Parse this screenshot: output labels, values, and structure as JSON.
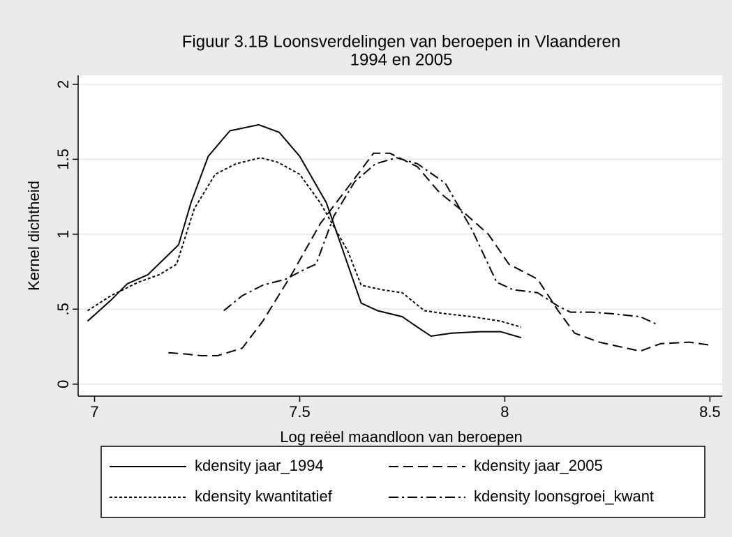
{
  "chart_data": {
    "type": "line",
    "title": [
      "Figuur 3.1B Loonsverdelingen van beroepen in Vlaanderen",
      "1994 en 2005"
    ],
    "xlabel": "Log reëel maandloon van beroepen",
    "ylabel": "Kernel dichtheid",
    "xlim": [
      6.96,
      8.53
    ],
    "xticks": [
      7,
      7.5,
      8,
      8.5
    ],
    "ylim": [
      -0.08,
      2.06
    ],
    "yticks": [
      0,
      {
        "value": 0.5,
        "label": ".5"
      },
      1,
      1.5,
      2
    ],
    "grid": true,
    "series": [
      {
        "name": "kdensity jaar_1994",
        "color": "#000000",
        "style": "solid",
        "x": [
          6.983,
          7.04,
          7.08,
          7.13,
          7.175,
          7.205,
          7.235,
          7.277,
          7.33,
          7.4,
          7.45,
          7.5,
          7.565,
          7.617,
          7.65,
          7.69,
          7.75,
          7.787,
          7.82,
          7.87,
          7.94,
          7.99,
          8.04
        ],
        "values": [
          0.42,
          0.56,
          0.67,
          0.73,
          0.85,
          0.93,
          1.21,
          1.52,
          1.69,
          1.73,
          1.68,
          1.52,
          1.21,
          0.8,
          0.54,
          0.49,
          0.45,
          0.38,
          0.32,
          0.34,
          0.35,
          0.35,
          0.31
        ]
      },
      {
        "name": "kdensity jaar_2005",
        "color": "#000000",
        "style": "dashed",
        "x": [
          7.18,
          7.225,
          7.26,
          7.3,
          7.36,
          7.41,
          7.48,
          7.55,
          7.617,
          7.68,
          7.72,
          7.787,
          7.84,
          7.89,
          7.96,
          8.01,
          8.08,
          8.13,
          8.17,
          8.23,
          8.28,
          8.33,
          8.38,
          8.45,
          8.5
        ],
        "values": [
          0.21,
          0.2,
          0.19,
          0.19,
          0.24,
          0.42,
          0.73,
          1.07,
          1.31,
          1.54,
          1.54,
          1.45,
          1.28,
          1.17,
          1.0,
          0.8,
          0.7,
          0.49,
          0.34,
          0.28,
          0.25,
          0.22,
          0.27,
          0.28,
          0.26
        ]
      },
      {
        "name": "kdensity kwantitatief",
        "color": "#000000",
        "style": "dotted",
        "x": [
          6.983,
          7.04,
          7.107,
          7.158,
          7.2,
          7.243,
          7.294,
          7.345,
          7.405,
          7.447,
          7.5,
          7.55,
          7.617,
          7.65,
          7.7,
          7.75,
          7.804,
          7.855,
          7.92,
          7.99,
          8.04
        ],
        "values": [
          0.49,
          0.59,
          0.68,
          0.73,
          0.8,
          1.17,
          1.4,
          1.47,
          1.51,
          1.48,
          1.4,
          1.21,
          0.89,
          0.66,
          0.63,
          0.61,
          0.49,
          0.47,
          0.45,
          0.42,
          0.38
        ]
      },
      {
        "name": "kdensity loonsgroei_kwant",
        "color": "#000000",
        "style": "dashdot",
        "x": [
          7.315,
          7.36,
          7.41,
          7.466,
          7.515,
          7.54,
          7.583,
          7.634,
          7.685,
          7.736,
          7.787,
          7.855,
          7.92,
          7.98,
          8.02,
          8.08,
          8.13,
          8.16,
          8.21,
          8.26,
          8.33,
          8.37
        ],
        "values": [
          0.49,
          0.59,
          0.66,
          0.7,
          0.77,
          0.8,
          1.12,
          1.35,
          1.47,
          1.51,
          1.47,
          1.34,
          1.03,
          0.68,
          0.63,
          0.61,
          0.52,
          0.48,
          0.48,
          0.47,
          0.45,
          0.4
        ]
      }
    ]
  }
}
